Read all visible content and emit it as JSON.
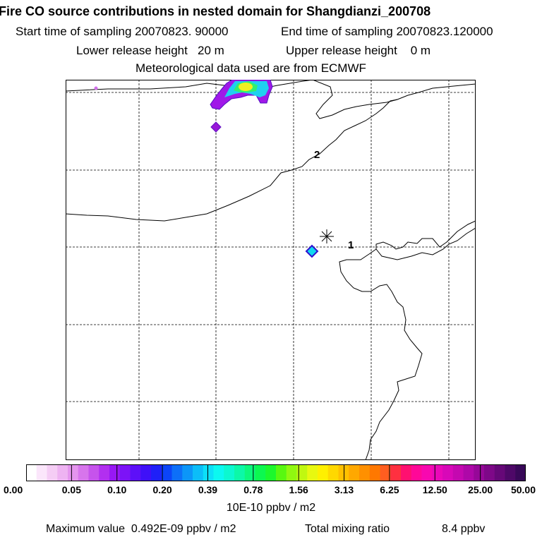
{
  "header": {
    "title": "Fire CO source contributions in nested domain for Shangdianzi_200708",
    "start_label": "Start time of sampling 20070823. 90000",
    "end_label": "End time of sampling 20070823.120000",
    "lower_label": "Lower release height   20 m",
    "upper_label": "Upper release height    0 m",
    "met_label": "Meteorological data used are from ECMWF"
  },
  "map": {
    "site_markers": [
      "1",
      "2"
    ],
    "receptor_symbol": "asterisk"
  },
  "colorbar": {
    "tick_labels": [
      "0.00",
      "0.05",
      "0.10",
      "0.20",
      "0.39",
      "0.78",
      "1.56",
      "3.13",
      "6.25",
      "12.50",
      "25.00",
      "50.00"
    ],
    "units": "10E-10 ppbv / m2",
    "colors": [
      "#ffffff",
      "#fbe6fb",
      "#f5cdf5",
      "#eeb3f2",
      "#e495ee",
      "#d775ec",
      "#c653ec",
      "#b22ff0",
      "#9818f4",
      "#7c13f7",
      "#5d10f8",
      "#3f10f8",
      "#1f20f8",
      "#0c45f8",
      "#0d6ff8",
      "#0c96f8",
      "#0cbdf8",
      "#0cdff8",
      "#0cf8f0",
      "#0cf8d0",
      "#0cf8a8",
      "#0cf87c",
      "#0cf850",
      "#1cf82c",
      "#58f810",
      "#90f810",
      "#c0f810",
      "#e8f810",
      "#fff000",
      "#ffd800",
      "#ffc000",
      "#ffa800",
      "#ff9000",
      "#ff7800",
      "#ff5e20",
      "#ff3040",
      "#ff1070",
      "#ff0898",
      "#f808b0",
      "#ea08b8",
      "#d808b8",
      "#c408b0",
      "#ae08a8",
      "#960898",
      "#7e0888",
      "#660878",
      "#4e0868",
      "#380858"
    ]
  },
  "footer": {
    "max_label": "Maximum value  0.492E-09 ppbv / m2",
    "total_label": "Total mixing ratio",
    "total_value": "8.4 ppbv"
  }
}
